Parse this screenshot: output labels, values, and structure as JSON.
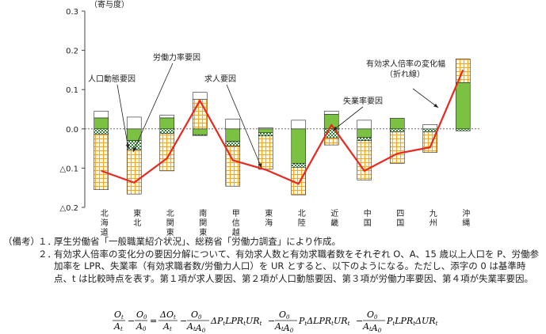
{
  "chart_data": {
    "type": "bar",
    "stacked": true,
    "ylabel": "（寄与度）",
    "ylim": [
      -0.2,
      0.3
    ],
    "yticks": [
      0.3,
      0.2,
      0.1,
      0.0,
      -0.1,
      -0.2
    ],
    "ytick_labels": [
      "0.3",
      "0.2",
      "0.1",
      "0.0",
      "△0.1",
      "△0.2"
    ],
    "grid": false,
    "categories": [
      "北海道",
      "東北",
      "北関東",
      "南関東",
      "甲信越",
      "東海",
      "北陸",
      "近畿",
      "中国",
      "四国",
      "九州",
      "沖縄"
    ],
    "series": [
      {
        "name": "求人要因",
        "pattern": "solid-green",
        "values": [
          0.028,
          -0.03,
          0.028,
          -0.015,
          -0.032,
          -0.01,
          -0.088,
          0.037,
          -0.022,
          0.027,
          0.0,
          0.118
        ]
      },
      {
        "name": "人口動態要因",
        "pattern": "checker-green",
        "values": [
          -0.013,
          -0.023,
          -0.012,
          -0.002,
          -0.012,
          -0.008,
          -0.01,
          -0.023,
          -0.008,
          -0.008,
          -0.008,
          -0.005
        ]
      },
      {
        "name": "労働力率要因",
        "pattern": "grid-orange",
        "values": [
          -0.142,
          -0.113,
          -0.095,
          0.075,
          -0.102,
          -0.085,
          -0.07,
          -0.018,
          -0.1,
          -0.08,
          -0.052,
          0.06
        ]
      },
      {
        "name": "失業率要因",
        "pattern": "white",
        "values": [
          0.017,
          0.03,
          0.007,
          0.018,
          0.025,
          0.003,
          0.022,
          0.008,
          0.022,
          0.0,
          0.011,
          0.0
        ]
      }
    ],
    "line": {
      "name": "有効求人倍率の変化幅（折れ線）",
      "values": [
        -0.107,
        -0.137,
        -0.075,
        0.072,
        -0.08,
        -0.104,
        -0.14,
        0.01,
        -0.107,
        -0.063,
        -0.047,
        0.15
      ]
    },
    "annotations": [
      {
        "text": "人口動態要因"
      },
      {
        "text": "労働力率要因"
      },
      {
        "text": "求人要因"
      },
      {
        "text": "失業率要因"
      },
      {
        "text": "有効求人倍率の変化幅"
      },
      {
        "text": "（折れ線）"
      }
    ]
  },
  "notes": {
    "head": "（備考）",
    "items": [
      {
        "num": "１．",
        "text": "厚生労働省「一般職業紹介状況」、総務省「労働力調査」により作成。"
      },
      {
        "num": "２．",
        "text": "有効求人倍率の変化分の要因分解について、有効求人数と有効求職者数をそれぞれ O、A、15 歳以上人口を P、労働参加率を LPR、失業率（有効求職者数/労働力人口）を UR とすると、以下のようになる。ただし、添字の 0 は基準時点、t は比較時点を表す。第１項が求人要因、第２項が人口動態要因、第３項が労働力率要因、第４項が失業率要因。"
      }
    ]
  },
  "colors": {
    "green": "#7cc242",
    "dark_green": "#2f8a2f",
    "orange": "#f5a623",
    "line_red": "#e8281e"
  }
}
